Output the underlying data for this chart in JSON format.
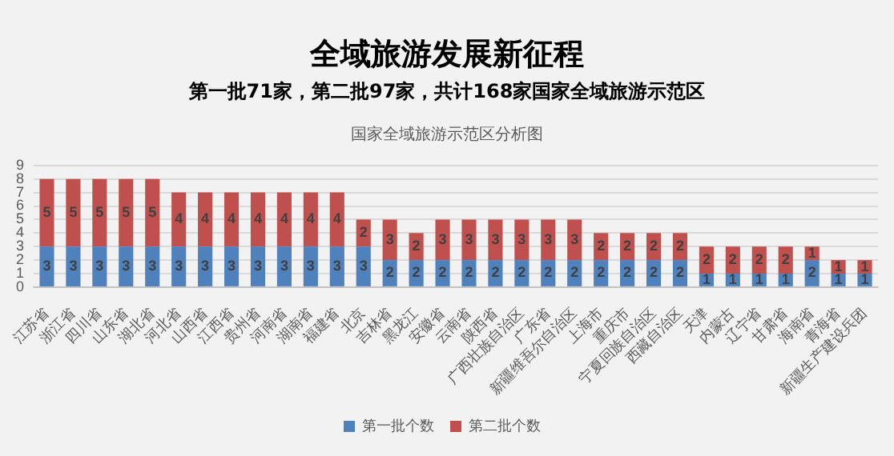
{
  "chart_data": {
    "type": "bar",
    "title": "全域旅游发展新征程",
    "subtitle": "第一批71家，第二批97家，共计168家国家全域旅游示范区",
    "annotations": [
      "国家全域旅游示范区分析图"
    ],
    "categories": [
      "江苏省",
      "浙江省",
      "四川省",
      "山东省",
      "湖北省",
      "河北省",
      "山西省",
      "江西省",
      "贵州省",
      "河南省",
      "湖南省",
      "福建省",
      "北京",
      "吉林省",
      "黑龙江",
      "安徽省",
      "云南省",
      "陕西省",
      "广西壮族自治区",
      "广东省",
      "新疆维吾尔自治区",
      "上海市",
      "重庆市",
      "宁夏回族自治区",
      "西藏自治区",
      "天津",
      "内蒙古",
      "辽宁省",
      "甘肃省",
      "海南省",
      "青海省",
      "新疆生产建设兵团"
    ],
    "series": [
      {
        "name": "第一批个数",
        "color": "#4f81bd",
        "values": [
          3,
          3,
          3,
          3,
          3,
          3,
          3,
          3,
          3,
          3,
          3,
          3,
          3,
          2,
          2,
          2,
          2,
          2,
          2,
          2,
          2,
          2,
          2,
          2,
          2,
          1,
          1,
          1,
          1,
          2,
          1,
          1
        ]
      },
      {
        "name": "第二批个数",
        "color": "#c0504d",
        "values": [
          5,
          5,
          5,
          5,
          5,
          4,
          4,
          4,
          4,
          4,
          4,
          4,
          2,
          3,
          2,
          3,
          3,
          3,
          3,
          3,
          3,
          2,
          2,
          2,
          2,
          2,
          2,
          2,
          2,
          1,
          1,
          1
        ]
      }
    ],
    "stacked": true,
    "ylim": [
      0,
      9
    ],
    "yticks": [
      0,
      1,
      2,
      3,
      4,
      5,
      6,
      7,
      8,
      9
    ],
    "grid": "y",
    "legend": "bottom",
    "data_labels": true
  }
}
